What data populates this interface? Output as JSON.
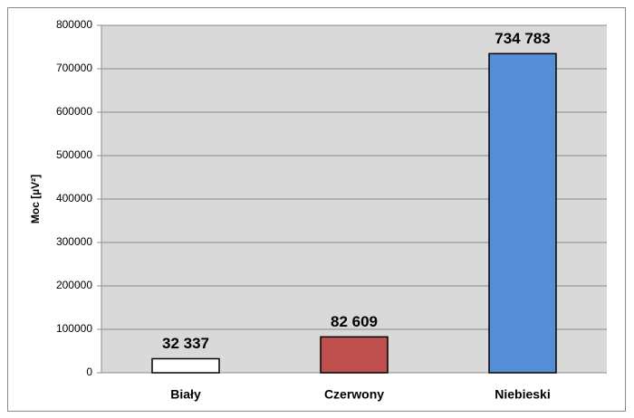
{
  "chart_data": {
    "type": "bar",
    "y_label": "Moc [µV²]",
    "categories": [
      "Biały",
      "Czerwony",
      "Niebieski"
    ],
    "values": [
      32337,
      82609,
      734783
    ],
    "value_labels": [
      "32 337",
      "82 609",
      "734 783"
    ],
    "colors": [
      "#ffffff",
      "#c0504d",
      "#558ed5"
    ],
    "ylim": [
      0,
      800000
    ],
    "yticks": [
      0,
      100000,
      200000,
      300000,
      400000,
      500000,
      600000,
      700000,
      800000
    ],
    "grid": true
  }
}
